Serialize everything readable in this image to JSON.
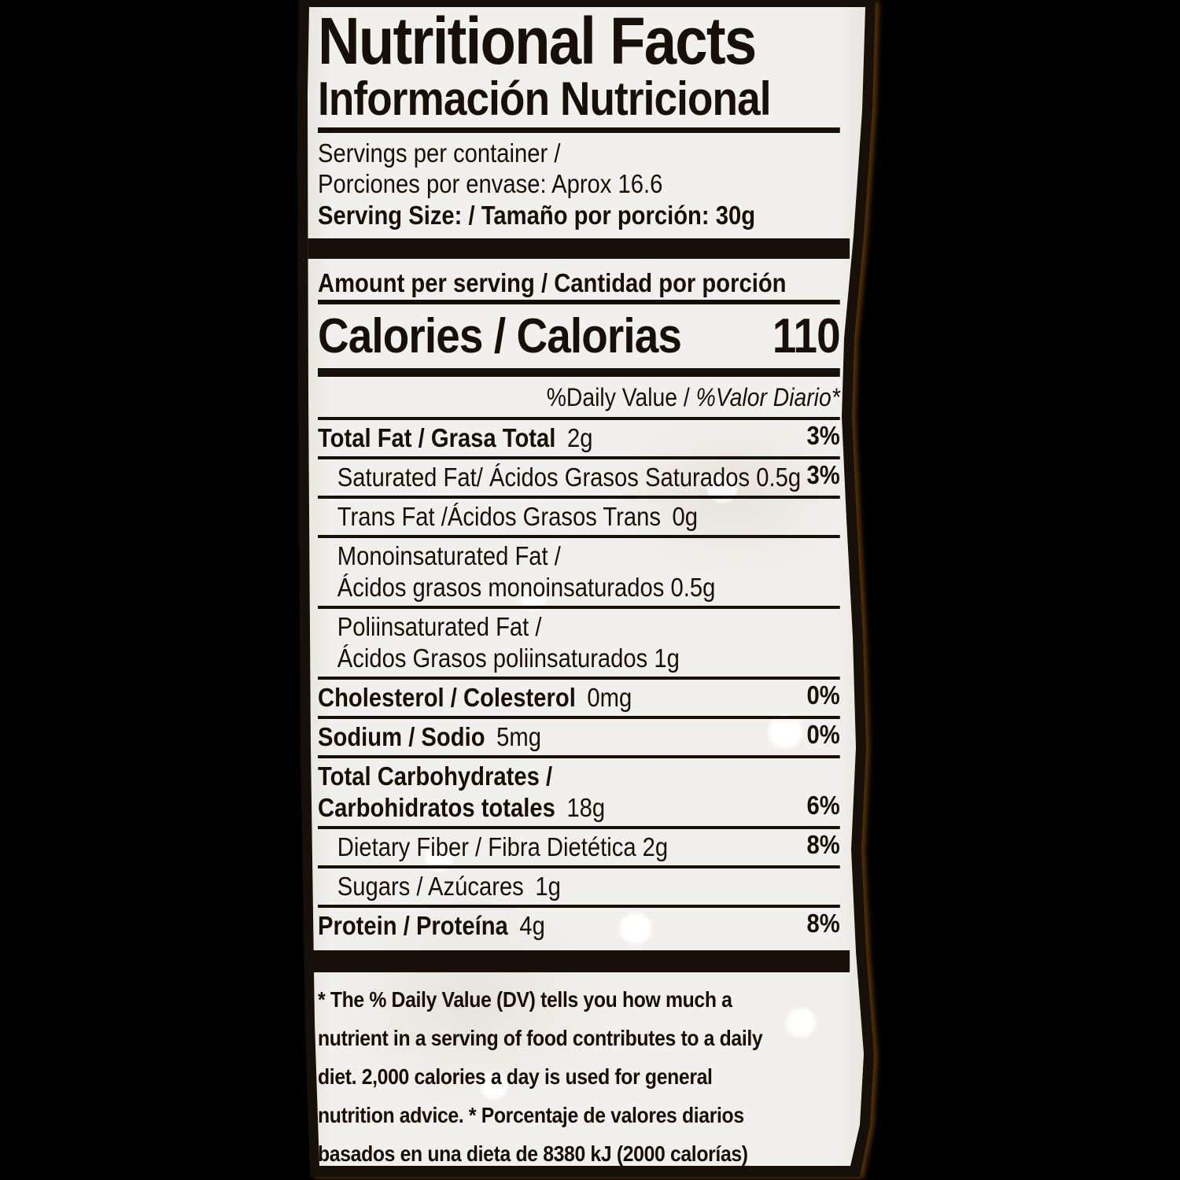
{
  "colors": {
    "page_background": "#000000",
    "label_background": "#f2f0ec",
    "ink": "#17100a",
    "edge_glow": "#96560c"
  },
  "header": {
    "title_en": "Nutritional Facts",
    "title_es": "Información Nutricional",
    "servings_line1": "Servings per container /",
    "servings_line2": "Porciones por envase: Aprox 16.6",
    "serving_size": "Serving Size: / Tamaño por porción: 30g"
  },
  "sections": {
    "amount_per_serving": "Amount per serving / Cantidad por porción"
  },
  "calories": {
    "label": "Calories / Calorias",
    "value": "110"
  },
  "daily_value": {
    "en": "%Daily Value / ",
    "es": "%Valor Diario*"
  },
  "nutrients": {
    "rows": [
      {
        "indent": false,
        "lines": [
          [
            {
              "b": "Total Fat / Grasa Total"
            },
            {
              "n": " 2g"
            }
          ]
        ],
        "dv": "3%"
      },
      {
        "indent": true,
        "lines": [
          [
            {
              "n": "Saturated Fat/ Ácidos Grasos Saturados 0.5g"
            }
          ]
        ],
        "dv": "3%"
      },
      {
        "indent": true,
        "lines": [
          [
            {
              "n": "Trans Fat /Ácidos Grasos Trans 0g"
            }
          ]
        ],
        "dv": ""
      },
      {
        "indent": true,
        "lines": [
          [
            {
              "n": "Monoinsaturated Fat /"
            }
          ],
          [
            {
              "n": "Ácidos grasos monoinsaturados 0.5g"
            }
          ]
        ],
        "dv": ""
      },
      {
        "indent": true,
        "lines": [
          [
            {
              "n": "Poliinsaturated Fat /"
            }
          ],
          [
            {
              "n": "Ácidos Grasos poliinsaturados 1g"
            }
          ]
        ],
        "dv": ""
      },
      {
        "indent": false,
        "lines": [
          [
            {
              "b": "Cholesterol / Colesterol"
            },
            {
              "n": " 0mg"
            }
          ]
        ],
        "dv": "0%"
      },
      {
        "indent": false,
        "lines": [
          [
            {
              "b": "Sodium / Sodio"
            },
            {
              "n": " 5mg"
            }
          ]
        ],
        "dv": "0%"
      },
      {
        "indent": false,
        "lines": [
          [
            {
              "b": "Total Carbohydrates /"
            }
          ],
          [
            {
              "b": "Carbohidratos totales"
            },
            {
              "n": " 18g"
            }
          ]
        ],
        "dv": "6%"
      },
      {
        "indent": true,
        "lines": [
          [
            {
              "n": "Dietary Fiber / Fibra Dietética 2g"
            }
          ]
        ],
        "dv": "8%"
      },
      {
        "indent": true,
        "lines": [
          [
            {
              "n": "Sugars / Azúcares 1g"
            }
          ]
        ],
        "dv": ""
      },
      {
        "indent": false,
        "lines": [
          [
            {
              "b": "Protein / Proteína"
            },
            {
              "n": " 4g"
            }
          ]
        ],
        "dv": "8%"
      }
    ]
  },
  "footnote": {
    "lines": [
      "* The % Daily Value (DV) tells you how much a",
      "nutrient in a serving of food contributes to a daily",
      "diet. 2,000 calories a day is used for general",
      "nutrition advice. * Porcentaje de valores diarios",
      "basados en una dieta de 8380 kJ (2000 calorías)"
    ]
  }
}
